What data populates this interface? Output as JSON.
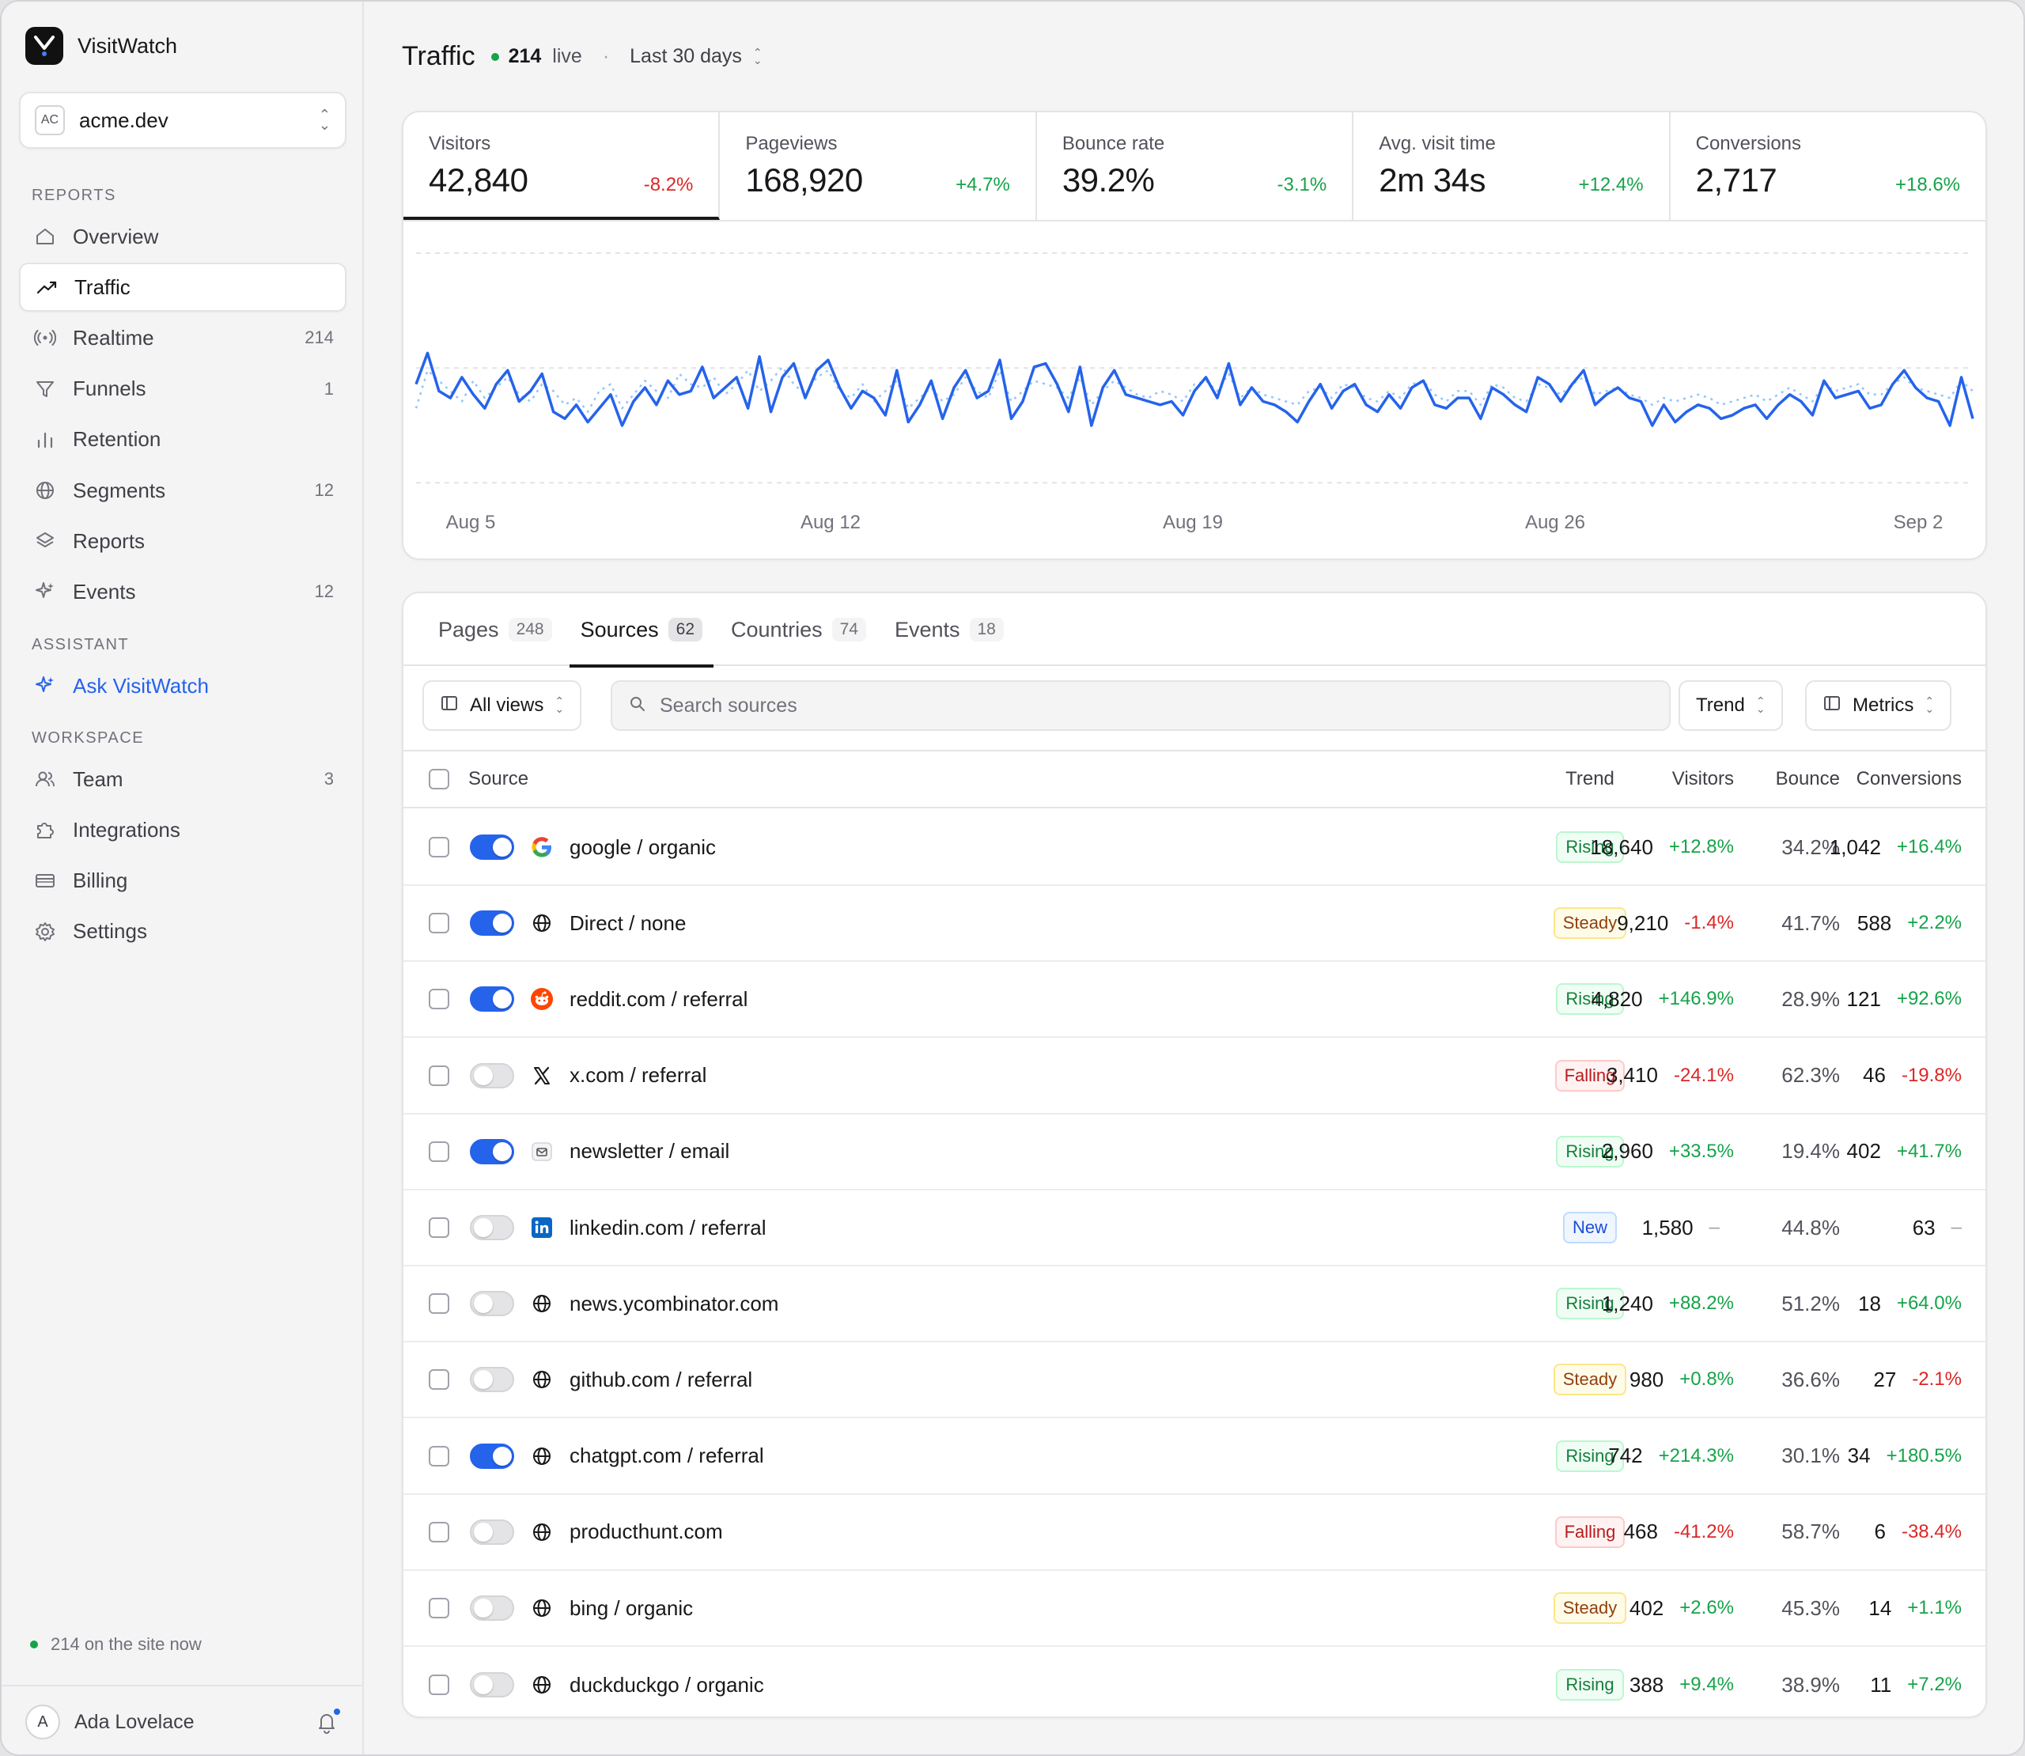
{
  "app": {
    "name": "VisitWatch"
  },
  "site": {
    "badge": "AC",
    "name": "acme.dev"
  },
  "sidebar": {
    "reports_label": "REPORTS",
    "reports": [
      {
        "label": "Overview",
        "icon": "home-icon",
        "count": ""
      },
      {
        "label": "Traffic",
        "icon": "trending-up-icon",
        "count": ""
      },
      {
        "label": "Realtime",
        "icon": "broadcast-icon",
        "count": "214"
      },
      {
        "label": "Funnels",
        "icon": "funnel-icon",
        "count": "1"
      },
      {
        "label": "Retention",
        "icon": "bar-chart-icon",
        "count": ""
      },
      {
        "label": "Segments",
        "icon": "globe-icon",
        "count": "12"
      },
      {
        "label": "Reports",
        "icon": "layers-icon",
        "count": ""
      },
      {
        "label": "Events",
        "icon": "sparkle-icon",
        "count": "12"
      }
    ],
    "assistant_label": "ASSISTANT",
    "assistant": {
      "label": "Ask VisitWatch",
      "icon": "sparkle-icon"
    },
    "workspace_label": "WORKSPACE",
    "workspace": [
      {
        "label": "Team",
        "icon": "users-icon",
        "count": "3"
      },
      {
        "label": "Integrations",
        "icon": "puzzle-icon",
        "count": ""
      },
      {
        "label": "Billing",
        "icon": "card-icon",
        "count": ""
      },
      {
        "label": "Settings",
        "icon": "gear-icon",
        "count": ""
      }
    ],
    "online_text": "214 on the site now",
    "user": {
      "initial": "A",
      "name": "Ada Lovelace"
    }
  },
  "header": {
    "title": "Traffic",
    "live_count": "214",
    "live_label": "live",
    "range": "Last 30 days"
  },
  "kpis": [
    {
      "label": "Visitors",
      "value": "42,840",
      "delta": "-8.2%",
      "dir": "neg"
    },
    {
      "label": "Pageviews",
      "value": "168,920",
      "delta": "+4.7%",
      "dir": "pos"
    },
    {
      "label": "Bounce rate",
      "value": "39.2%",
      "delta": "-3.1%",
      "dir": "pos"
    },
    {
      "label": "Avg. visit time",
      "value": "2m 34s",
      "delta": "+12.4%",
      "dir": "pos"
    },
    {
      "label": "Conversions",
      "value": "2,717",
      "delta": "+18.6%",
      "dir": "pos"
    }
  ],
  "chart_data": {
    "type": "line",
    "x_tick_labels": [
      "Aug 5",
      "Aug 12",
      "Aug 19",
      "Aug 26",
      "Sep 2"
    ],
    "grid": true,
    "ylim": [
      0,
      100
    ],
    "series": [
      {
        "style": "solid",
        "color": "#2563eb",
        "values": [
          62,
          71,
          60,
          58,
          64,
          59,
          55,
          62,
          66,
          57,
          60,
          65,
          54,
          52,
          56,
          51,
          55,
          59,
          50,
          57,
          61,
          56,
          63,
          59,
          60,
          67,
          58,
          61,
          64,
          55,
          70,
          54,
          64,
          68,
          58,
          66,
          69,
          61,
          55,
          60,
          58,
          53,
          66,
          51,
          56,
          63,
          52,
          61,
          66,
          58,
          60,
          69,
          52,
          57,
          67,
          68,
          62,
          54,
          67,
          50,
          61,
          66,
          59,
          58,
          57,
          56,
          57,
          53,
          60,
          64,
          58,
          68,
          56,
          61,
          57,
          56,
          54,
          51,
          57,
          62,
          55,
          60,
          62,
          56,
          54,
          59,
          55,
          61,
          63,
          56,
          55,
          58,
          58,
          52,
          61,
          59,
          56,
          54,
          64,
          62,
          57,
          62,
          66,
          56,
          59,
          61,
          58,
          57,
          50,
          56,
          51,
          54,
          56,
          55,
          52,
          53,
          55,
          56,
          52,
          56,
          59,
          57,
          53,
          63,
          58,
          59,
          60,
          55,
          56,
          62,
          66,
          61,
          58,
          57,
          50,
          64,
          52
        ]
      },
      {
        "style": "dotted",
        "color": "#93c5fd",
        "values": [
          55,
          66,
          63,
          60,
          57,
          63,
          58,
          61,
          64,
          59,
          57,
          62,
          60,
          56,
          58,
          54,
          60,
          62,
          55,
          59,
          63,
          60,
          58,
          65,
          62,
          61,
          64,
          59,
          62,
          66,
          60,
          63,
          67,
          62,
          59,
          64,
          66,
          60,
          58,
          62,
          57,
          60,
          63,
          55,
          58,
          61,
          57,
          59,
          64,
          60,
          58,
          66,
          57,
          60,
          63,
          62,
          61,
          58,
          64,
          56,
          60,
          63,
          61,
          59,
          58,
          60,
          59,
          57,
          62,
          63,
          60,
          65,
          58,
          61,
          59,
          58,
          57,
          56,
          60,
          61,
          58,
          62,
          61,
          58,
          57,
          60,
          58,
          62,
          63,
          59,
          57,
          60,
          60,
          56,
          62,
          61,
          58,
          57,
          62,
          61,
          59,
          62,
          64,
          59,
          60,
          61,
          59,
          58,
          56,
          58,
          57,
          58,
          59,
          58,
          56,
          57,
          58,
          59,
          57,
          59,
          61,
          59,
          57,
          62,
          60,
          61,
          62,
          59,
          59,
          62,
          64,
          61,
          60,
          59,
          58,
          63,
          60
        ]
      }
    ]
  },
  "tabs": [
    {
      "label": "Pages",
      "count": "248"
    },
    {
      "label": "Sources",
      "count": "62"
    },
    {
      "label": "Countries",
      "count": "74"
    },
    {
      "label": "Events",
      "count": "18"
    }
  ],
  "toolbar": {
    "views_label": "All views",
    "search_placeholder": "Search sources",
    "trend_label": "Trend",
    "metrics_label": "Metrics"
  },
  "columns": {
    "source": "Source",
    "trend": "Trend",
    "bounce": "Bounce",
    "visitors": "Visitors",
    "conversions": "Conversions"
  },
  "rows": [
    {
      "source": "google / organic",
      "icon": "google-icon",
      "enabled": true,
      "trend": "Rising",
      "bounce": "34.2%",
      "visitors": "18,640",
      "visitors_delta": "+12.8%",
      "visitors_dir": "pos",
      "conversions": "1,042",
      "conversions_delta": "+16.4%",
      "conversions_dir": "pos"
    },
    {
      "source": "Direct / none",
      "icon": "globe-icon",
      "enabled": true,
      "trend": "Steady",
      "bounce": "41.7%",
      "visitors": "9,210",
      "visitors_delta": "-1.4%",
      "visitors_dir": "neg",
      "conversions": "588",
      "conversions_delta": "+2.2%",
      "conversions_dir": "pos"
    },
    {
      "source": "reddit.com / referral",
      "icon": "reddit-icon",
      "enabled": true,
      "trend": "Rising",
      "bounce": "28.9%",
      "visitors": "4,820",
      "visitors_delta": "+146.9%",
      "visitors_dir": "pos",
      "conversions": "121",
      "conversions_delta": "+92.6%",
      "conversions_dir": "pos"
    },
    {
      "source": "x.com / referral",
      "icon": "x-logo-icon",
      "enabled": false,
      "trend": "Falling",
      "bounce": "62.3%",
      "visitors": "3,410",
      "visitors_delta": "-24.1%",
      "visitors_dir": "neg",
      "conversions": "46",
      "conversions_delta": "-19.8%",
      "conversions_dir": "neg"
    },
    {
      "source": "newsletter / email",
      "icon": "mail-icon",
      "enabled": true,
      "trend": "Rising",
      "bounce": "19.4%",
      "visitors": "2,960",
      "visitors_delta": "+33.5%",
      "visitors_dir": "pos",
      "conversions": "402",
      "conversions_delta": "+41.7%",
      "conversions_dir": "pos"
    },
    {
      "source": "linkedin.com / referral",
      "icon": "linkedin-icon",
      "enabled": false,
      "trend": "New",
      "bounce": "44.8%",
      "visitors": "1,580",
      "visitors_delta": "–",
      "visitors_dir": "neu",
      "conversions": "63",
      "conversions_delta": "–",
      "conversions_dir": "neu"
    },
    {
      "source": "news.ycombinator.com",
      "icon": "globe-icon",
      "enabled": false,
      "trend": "Rising",
      "bounce": "51.2%",
      "visitors": "1,240",
      "visitors_delta": "+88.2%",
      "visitors_dir": "pos",
      "conversions": "18",
      "conversions_delta": "+64.0%",
      "conversions_dir": "pos"
    },
    {
      "source": "github.com / referral",
      "icon": "globe-icon",
      "enabled": false,
      "trend": "Steady",
      "bounce": "36.6%",
      "visitors": "980",
      "visitors_delta": "+0.8%",
      "visitors_dir": "pos",
      "conversions": "27",
      "conversions_delta": "-2.1%",
      "conversions_dir": "neg"
    },
    {
      "source": "chatgpt.com / referral",
      "icon": "globe-icon",
      "enabled": true,
      "trend": "Rising",
      "bounce": "30.1%",
      "visitors": "742",
      "visitors_delta": "+214.3%",
      "visitors_dir": "pos",
      "conversions": "34",
      "conversions_delta": "+180.5%",
      "conversions_dir": "pos"
    },
    {
      "source": "producthunt.com",
      "icon": "globe-icon",
      "enabled": false,
      "trend": "Falling",
      "bounce": "58.7%",
      "visitors": "468",
      "visitors_delta": "-41.2%",
      "visitors_dir": "neg",
      "conversions": "6",
      "conversions_delta": "-38.4%",
      "conversions_dir": "neg"
    },
    {
      "source": "bing / organic",
      "icon": "globe-icon",
      "enabled": false,
      "trend": "Steady",
      "bounce": "45.3%",
      "visitors": "402",
      "visitors_delta": "+2.6%",
      "visitors_dir": "pos",
      "conversions": "14",
      "conversions_delta": "+1.1%",
      "conversions_dir": "pos"
    },
    {
      "source": "duckduckgo / organic",
      "icon": "globe-icon",
      "enabled": false,
      "trend": "Rising",
      "bounce": "38.9%",
      "visitors": "388",
      "visitors_delta": "+9.4%",
      "visitors_dir": "pos",
      "conversions": "11",
      "conversions_delta": "+7.2%",
      "conversions_dir": "pos"
    }
  ]
}
